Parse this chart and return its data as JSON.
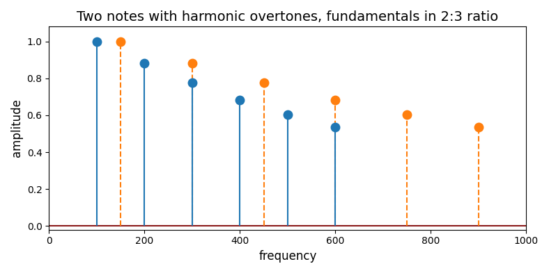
{
  "title": "Two notes with harmonic overtones, fundamentals in 2:3 ratio",
  "xlabel": "frequency",
  "ylabel": "amplitude",
  "xlim": [
    0,
    1000
  ],
  "ylim": [
    -0.02,
    1.08
  ],
  "note1": {
    "fundamental": 100,
    "harmonics": [
      1,
      2,
      3,
      4,
      5,
      6
    ],
    "amplitudes": [
      1.0,
      0.882,
      0.776,
      0.681,
      0.602,
      0.535
    ],
    "color": "#1f77b4",
    "linestyle": "solid"
  },
  "note2": {
    "fundamental": 150,
    "harmonics": [
      1,
      2,
      3,
      4,
      5,
      6
    ],
    "amplitudes": [
      1.0,
      0.882,
      0.776,
      0.681,
      0.602,
      0.535
    ],
    "color": "#ff7f0e",
    "linestyle": "dashed"
  },
  "baseline_color": "#8b1a1a",
  "figsize": [
    7.88,
    3.93
  ],
  "dpi": 100
}
